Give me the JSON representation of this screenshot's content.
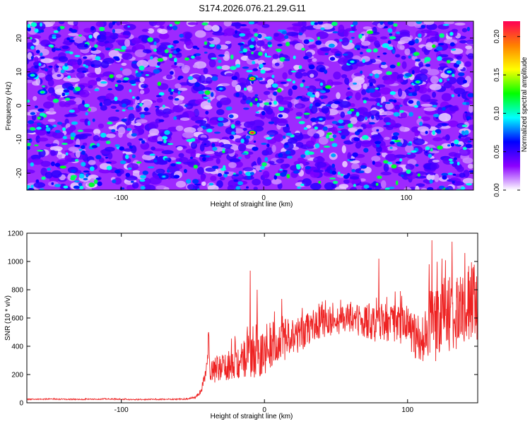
{
  "figure_title": "S174.2026.076.21.29.G11",
  "chart_data": [
    {
      "type": "heatmap",
      "title": "S174.2026.076.21.29.G11",
      "xlabel": "Height of straight line (km)",
      "ylabel": "Frequency (Hz)",
      "xlim": [
        -166,
        147
      ],
      "ylim": [
        -25,
        25
      ],
      "xticks": [
        -100,
        0,
        100
      ],
      "yticks": [
        -20,
        -10,
        0,
        10,
        20
      ],
      "colorbar": {
        "label": "Normalized spectral amplitude",
        "range": [
          0,
          0.22
        ],
        "ticks": [
          "0.00",
          "0.05",
          "0.10",
          "0.15",
          "0.20"
        ],
        "colors": [
          "#ffffff",
          "#8b00ff",
          "#0000ff",
          "#00ffff",
          "#00ff00",
          "#ffff00",
          "#ff8000",
          "#ff0055"
        ]
      },
      "hotspots": [
        {
          "x": -8,
          "y": 8,
          "value": 0.21
        },
        {
          "x": -8,
          "y": -8,
          "value": 0.22
        },
        {
          "x": -155,
          "y": 4,
          "value": 0.12
        },
        {
          "x": -162,
          "y": 9,
          "value": 0.11
        },
        {
          "x": 108,
          "y": 7,
          "value": 0.12
        },
        {
          "x": 130,
          "y": 10,
          "value": 0.11
        },
        {
          "x": -70,
          "y": -21,
          "value": 0.09
        },
        {
          "x": 40,
          "y": -4,
          "value": 0.09
        },
        {
          "x": 62,
          "y": 13,
          "value": 0.1
        },
        {
          "x": -30,
          "y": 5,
          "value": 0.09
        }
      ]
    },
    {
      "type": "line",
      "xlabel": "Height of straight line (km)",
      "ylabel": "SNR (10 * v/v)",
      "xlim": [
        -166,
        149
      ],
      "ylim": [
        0,
        1200
      ],
      "xticks": [
        -100,
        0,
        100
      ],
      "yticks": [
        0,
        200,
        400,
        600,
        800,
        1000,
        1200
      ],
      "line_color": "#ee2222",
      "series": [
        {
          "name": "SNR",
          "x": [
            -166,
            -150,
            -130,
            -110,
            -90,
            -70,
            -55,
            -48,
            -44,
            -42,
            -40,
            -39,
            -38,
            -36,
            -30,
            -25,
            -20,
            -15,
            -12,
            -10,
            -8,
            -5,
            0,
            5,
            10,
            15,
            20,
            25,
            30,
            35,
            40,
            50,
            60,
            70,
            80,
            90,
            100,
            104,
            108,
            112,
            116,
            120,
            125,
            130,
            135,
            140,
            145,
            149
          ],
          "y": [
            25,
            26,
            24,
            27,
            23,
            25,
            26,
            40,
            90,
            180,
            260,
            480,
            180,
            220,
            250,
            280,
            330,
            300,
            350,
            400,
            360,
            370,
            380,
            420,
            430,
            450,
            460,
            480,
            530,
            550,
            570,
            590,
            610,
            580,
            560,
            580,
            540,
            480,
            470,
            500,
            600,
            550,
            620,
            630,
            650,
            660,
            700,
            650
          ],
          "noise": [
            4,
            4,
            4,
            4,
            4,
            4,
            5,
            8,
            20,
            40,
            60,
            120,
            80,
            90,
            110,
            130,
            160,
            180,
            200,
            220,
            200,
            190,
            180,
            170,
            160,
            150,
            140,
            130,
            120,
            115,
            110,
            110,
            115,
            120,
            140,
            150,
            150,
            160,
            180,
            220,
            250,
            260,
            270,
            280,
            280,
            290,
            300,
            300
          ],
          "peaks": [
            {
              "x": -39,
              "y": 500
            },
            {
              "x": -10,
              "y": 935
            },
            {
              "x": -5,
              "y": 800
            },
            {
              "x": 12,
              "y": 735
            },
            {
              "x": 80,
              "y": 1020
            },
            {
              "x": 95,
              "y": 790
            },
            {
              "x": 115,
              "y": 980
            },
            {
              "x": 117,
              "y": 1150
            },
            {
              "x": 124,
              "y": 1020
            },
            {
              "x": 131,
              "y": 1140
            },
            {
              "x": 140,
              "y": 1060
            }
          ]
        }
      ]
    }
  ]
}
